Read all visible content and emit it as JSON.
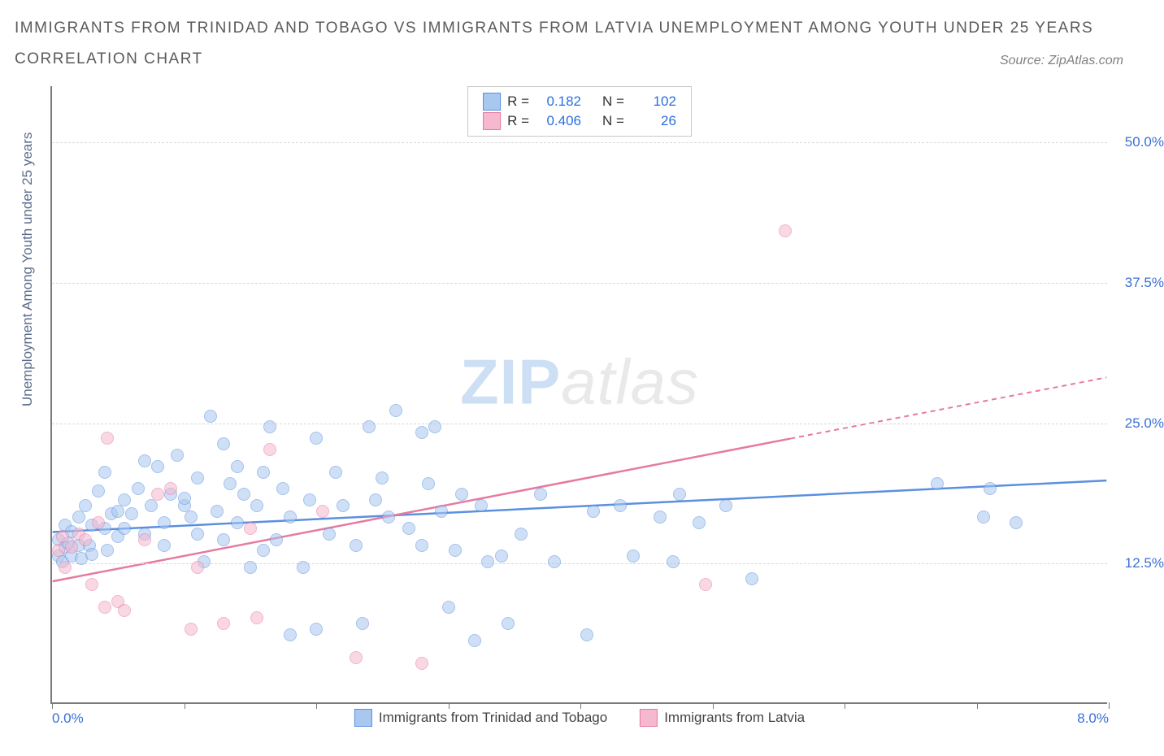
{
  "title_line1": "IMMIGRANTS FROM TRINIDAD AND TOBAGO VS IMMIGRANTS FROM LATVIA UNEMPLOYMENT AMONG YOUTH UNDER 25 YEARS",
  "title_line2": "CORRELATION CHART",
  "source_label": "Source: ZipAtlas.com",
  "y_axis_label": "Unemployment Among Youth under 25 years",
  "watermark": {
    "part1": "ZIP",
    "part2": "atlas"
  },
  "chart": {
    "type": "scatter",
    "xlim": [
      0,
      8
    ],
    "ylim": [
      0,
      55
    ],
    "x_ticks": [
      0,
      1,
      2,
      3,
      4,
      5,
      6,
      7,
      8
    ],
    "x_tick_labels": {
      "0": "0.0%",
      "8": "8.0%"
    },
    "y_gridlines": [
      12.5,
      25,
      37.5,
      50
    ],
    "y_tick_labels": {
      "12.5": "12.5%",
      "25": "25.0%",
      "37.5": "37.5%",
      "50": "50.0%"
    },
    "background_color": "#ffffff",
    "grid_color": "#d8d8d8",
    "axis_color": "#7a7a7a",
    "tick_label_color": "#3a6fd8",
    "y_axis_label_color": "#5a6b8c",
    "title_color": "#5a5a5a",
    "point_radius": 8,
    "point_opacity": 0.55,
    "trend_line_width": 2.5
  },
  "series": [
    {
      "key": "trinidad",
      "label": "Immigrants from Trinidad and Tobago",
      "color_stroke": "#5b8fe0",
      "color_fill": "#a9c8f0",
      "R": "0.182",
      "N": "102",
      "trend": {
        "x1": 0,
        "y1": 15.2,
        "x2": 8,
        "y2": 19.8,
        "dash_from_x": null
      },
      "points": [
        [
          0.05,
          13.0
        ],
        [
          0.05,
          14.5
        ],
        [
          0.08,
          12.5
        ],
        [
          0.1,
          13.8
        ],
        [
          0.1,
          15.8
        ],
        [
          0.12,
          14.2
        ],
        [
          0.15,
          13.0
        ],
        [
          0.15,
          15.2
        ],
        [
          0.2,
          16.5
        ],
        [
          0.2,
          14.0
        ],
        [
          0.22,
          12.8
        ],
        [
          0.25,
          17.5
        ],
        [
          0.28,
          14.0
        ],
        [
          0.3,
          15.8
        ],
        [
          0.3,
          13.2
        ],
        [
          0.35,
          18.8
        ],
        [
          0.4,
          15.5
        ],
        [
          0.4,
          20.5
        ],
        [
          0.42,
          13.5
        ],
        [
          0.45,
          16.8
        ],
        [
          0.5,
          17.0
        ],
        [
          0.5,
          14.8
        ],
        [
          0.55,
          15.5
        ],
        [
          0.55,
          18.0
        ],
        [
          0.6,
          16.8
        ],
        [
          0.65,
          19.0
        ],
        [
          0.7,
          21.5
        ],
        [
          0.7,
          15.0
        ],
        [
          0.75,
          17.5
        ],
        [
          0.8,
          21.0
        ],
        [
          0.85,
          16.0
        ],
        [
          0.85,
          14.0
        ],
        [
          0.9,
          18.5
        ],
        [
          0.95,
          22.0
        ],
        [
          1.0,
          17.5
        ],
        [
          1.0,
          18.2
        ],
        [
          1.05,
          16.5
        ],
        [
          1.1,
          15.0
        ],
        [
          1.1,
          20.0
        ],
        [
          1.15,
          12.5
        ],
        [
          1.2,
          25.5
        ],
        [
          1.25,
          17.0
        ],
        [
          1.3,
          23.0
        ],
        [
          1.3,
          14.5
        ],
        [
          1.35,
          19.5
        ],
        [
          1.4,
          16.0
        ],
        [
          1.4,
          21.0
        ],
        [
          1.45,
          18.5
        ],
        [
          1.5,
          12.0
        ],
        [
          1.55,
          17.5
        ],
        [
          1.6,
          20.5
        ],
        [
          1.6,
          13.5
        ],
        [
          1.65,
          24.5
        ],
        [
          1.7,
          14.5
        ],
        [
          1.75,
          19.0
        ],
        [
          1.8,
          6.0
        ],
        [
          1.8,
          16.5
        ],
        [
          1.9,
          12.0
        ],
        [
          1.95,
          18.0
        ],
        [
          2.0,
          23.5
        ],
        [
          2.0,
          6.5
        ],
        [
          2.1,
          15.0
        ],
        [
          2.15,
          20.5
        ],
        [
          2.2,
          17.5
        ],
        [
          2.3,
          14.0
        ],
        [
          2.35,
          7.0
        ],
        [
          2.4,
          24.5
        ],
        [
          2.45,
          18.0
        ],
        [
          2.5,
          20.0
        ],
        [
          2.55,
          16.5
        ],
        [
          2.6,
          26.0
        ],
        [
          2.7,
          15.5
        ],
        [
          2.8,
          14.0
        ],
        [
          2.8,
          24.0
        ],
        [
          2.85,
          19.5
        ],
        [
          2.9,
          24.5
        ],
        [
          2.95,
          17.0
        ],
        [
          3.0,
          8.5
        ],
        [
          3.05,
          13.5
        ],
        [
          3.1,
          18.5
        ],
        [
          3.2,
          5.5
        ],
        [
          3.25,
          17.5
        ],
        [
          3.3,
          12.5
        ],
        [
          3.4,
          13.0
        ],
        [
          3.45,
          7.0
        ],
        [
          3.55,
          15.0
        ],
        [
          3.7,
          18.5
        ],
        [
          3.8,
          12.5
        ],
        [
          4.05,
          6.0
        ],
        [
          4.1,
          17.0
        ],
        [
          4.3,
          17.5
        ],
        [
          4.4,
          13.0
        ],
        [
          4.6,
          16.5
        ],
        [
          4.7,
          12.5
        ],
        [
          4.75,
          18.5
        ],
        [
          4.9,
          16.0
        ],
        [
          5.1,
          17.5
        ],
        [
          5.3,
          11.0
        ],
        [
          6.7,
          19.5
        ],
        [
          7.05,
          16.5
        ],
        [
          7.1,
          19.0
        ],
        [
          7.3,
          16.0
        ]
      ]
    },
    {
      "key": "latvia",
      "label": "Immigrants from Latvia",
      "color_stroke": "#e67aa0",
      "color_fill": "#f5b8ce",
      "R": "0.406",
      "N": "26",
      "trend": {
        "x1": 0,
        "y1": 10.8,
        "x2": 8,
        "y2": 29.0,
        "dash_from_x": 5.6
      },
      "points": [
        [
          0.05,
          13.5
        ],
        [
          0.08,
          14.8
        ],
        [
          0.1,
          12.0
        ],
        [
          0.15,
          13.8
        ],
        [
          0.2,
          15.0
        ],
        [
          0.25,
          14.5
        ],
        [
          0.3,
          10.5
        ],
        [
          0.35,
          16.0
        ],
        [
          0.4,
          8.5
        ],
        [
          0.42,
          23.5
        ],
        [
          0.5,
          9.0
        ],
        [
          0.55,
          8.2
        ],
        [
          0.7,
          14.5
        ],
        [
          0.8,
          18.5
        ],
        [
          0.9,
          19.0
        ],
        [
          1.05,
          6.5
        ],
        [
          1.1,
          12.0
        ],
        [
          1.3,
          7.0
        ],
        [
          1.5,
          15.5
        ],
        [
          1.55,
          7.5
        ],
        [
          1.65,
          22.5
        ],
        [
          2.05,
          17.0
        ],
        [
          2.3,
          4.0
        ],
        [
          2.8,
          3.5
        ],
        [
          4.95,
          10.5
        ],
        [
          5.55,
          42.0
        ]
      ]
    }
  ],
  "legend_top": {
    "r_label": "R =",
    "n_label": "N ="
  }
}
